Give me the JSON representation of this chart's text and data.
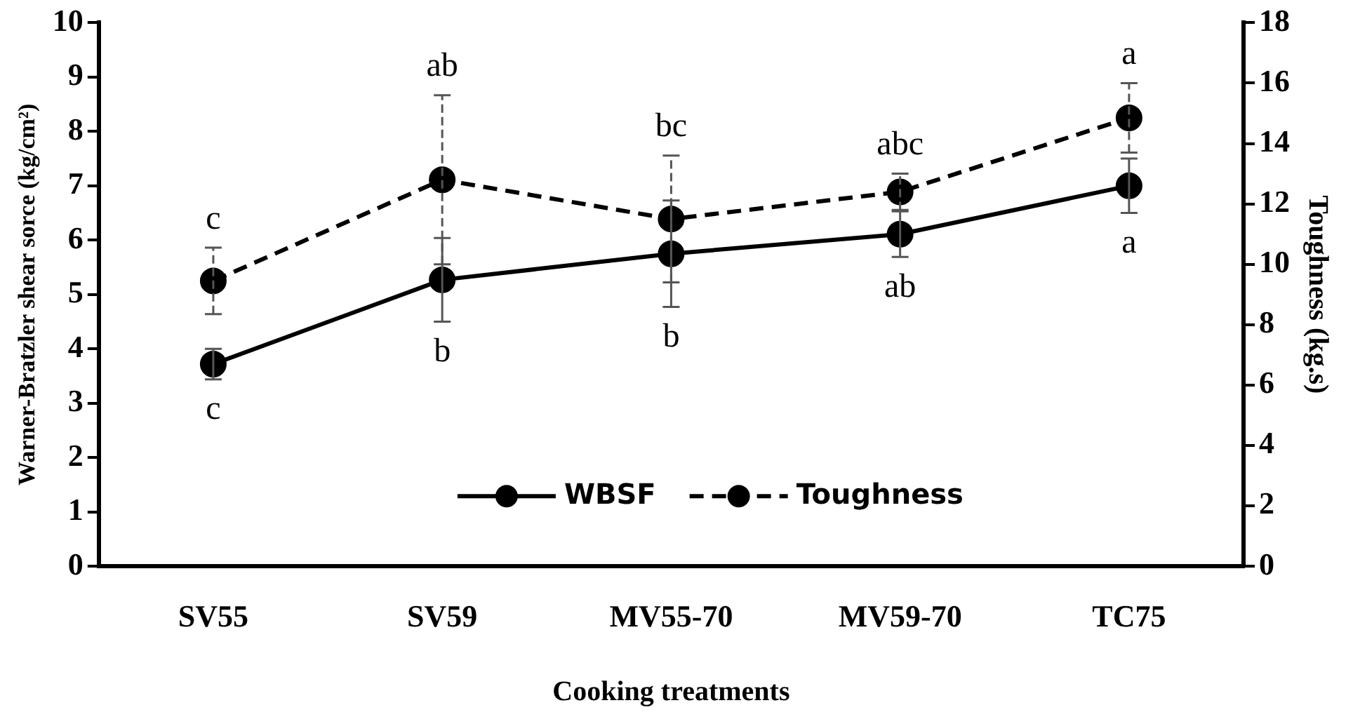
{
  "chart_data": {
    "type": "line",
    "xlabel": "Cooking treatments",
    "ylabel": "Warner-Bratzler shear sorce (kg/cm²)",
    "y2label": "Toughness (kg.s)",
    "categories": [
      "SV55",
      "SV59",
      "MV55-70",
      "MV59-70",
      "TC75"
    ],
    "series": [
      {
        "name": "WBSF",
        "color": "#000000",
        "line_style": "solid",
        "values": [
          3.72,
          5.27,
          5.75,
          6.11,
          7.0
        ],
        "errors": [
          0.28,
          0.77,
          0.98,
          0.42,
          0.5
        ]
      },
      {
        "name": "Toughness",
        "color": "#000000",
        "line_style": "dashed",
        "axis": "y2",
        "values": [
          9.45,
          12.8,
          11.5,
          12.4,
          14.85
        ],
        "errors": [
          1.1,
          2.8,
          2.1,
          0.6,
          1.15
        ]
      }
    ],
    "ylim": [
      0,
      10
    ],
    "yticks": [
      0,
      1,
      2,
      3,
      4,
      5,
      6,
      7,
      8,
      9,
      10
    ],
    "y2lim": [
      0,
      18
    ],
    "y2ticks": [
      0,
      2,
      4,
      6,
      8,
      10,
      12,
      14,
      16,
      18
    ],
    "marker": "circle",
    "grid": false,
    "legend": "bottom",
    "annotations": [
      {
        "text": "c",
        "x": "SV55",
        "y": 3.72
      },
      {
        "text": "b",
        "x": "SV59",
        "y": 5.27
      },
      {
        "text": "b",
        "x": "MV55-70",
        "y": 5.75
      },
      {
        "text": "ab",
        "x": "MV59-70",
        "y": 6.11
      },
      {
        "text": "a",
        "x": "TC75",
        "y": 7.0
      },
      {
        "text": "c",
        "x": "SV55",
        "y": 5.25
      },
      {
        "text": "ab",
        "x": "SV59",
        "y": 7.11
      },
      {
        "text": "bc",
        "x": "MV55-70",
        "y": 6.39
      },
      {
        "text": "abc",
        "x": "MV59-70",
        "y": 6.89
      },
      {
        "text": "a",
        "x": "TC75",
        "y": 8.25
      }
    ]
  }
}
